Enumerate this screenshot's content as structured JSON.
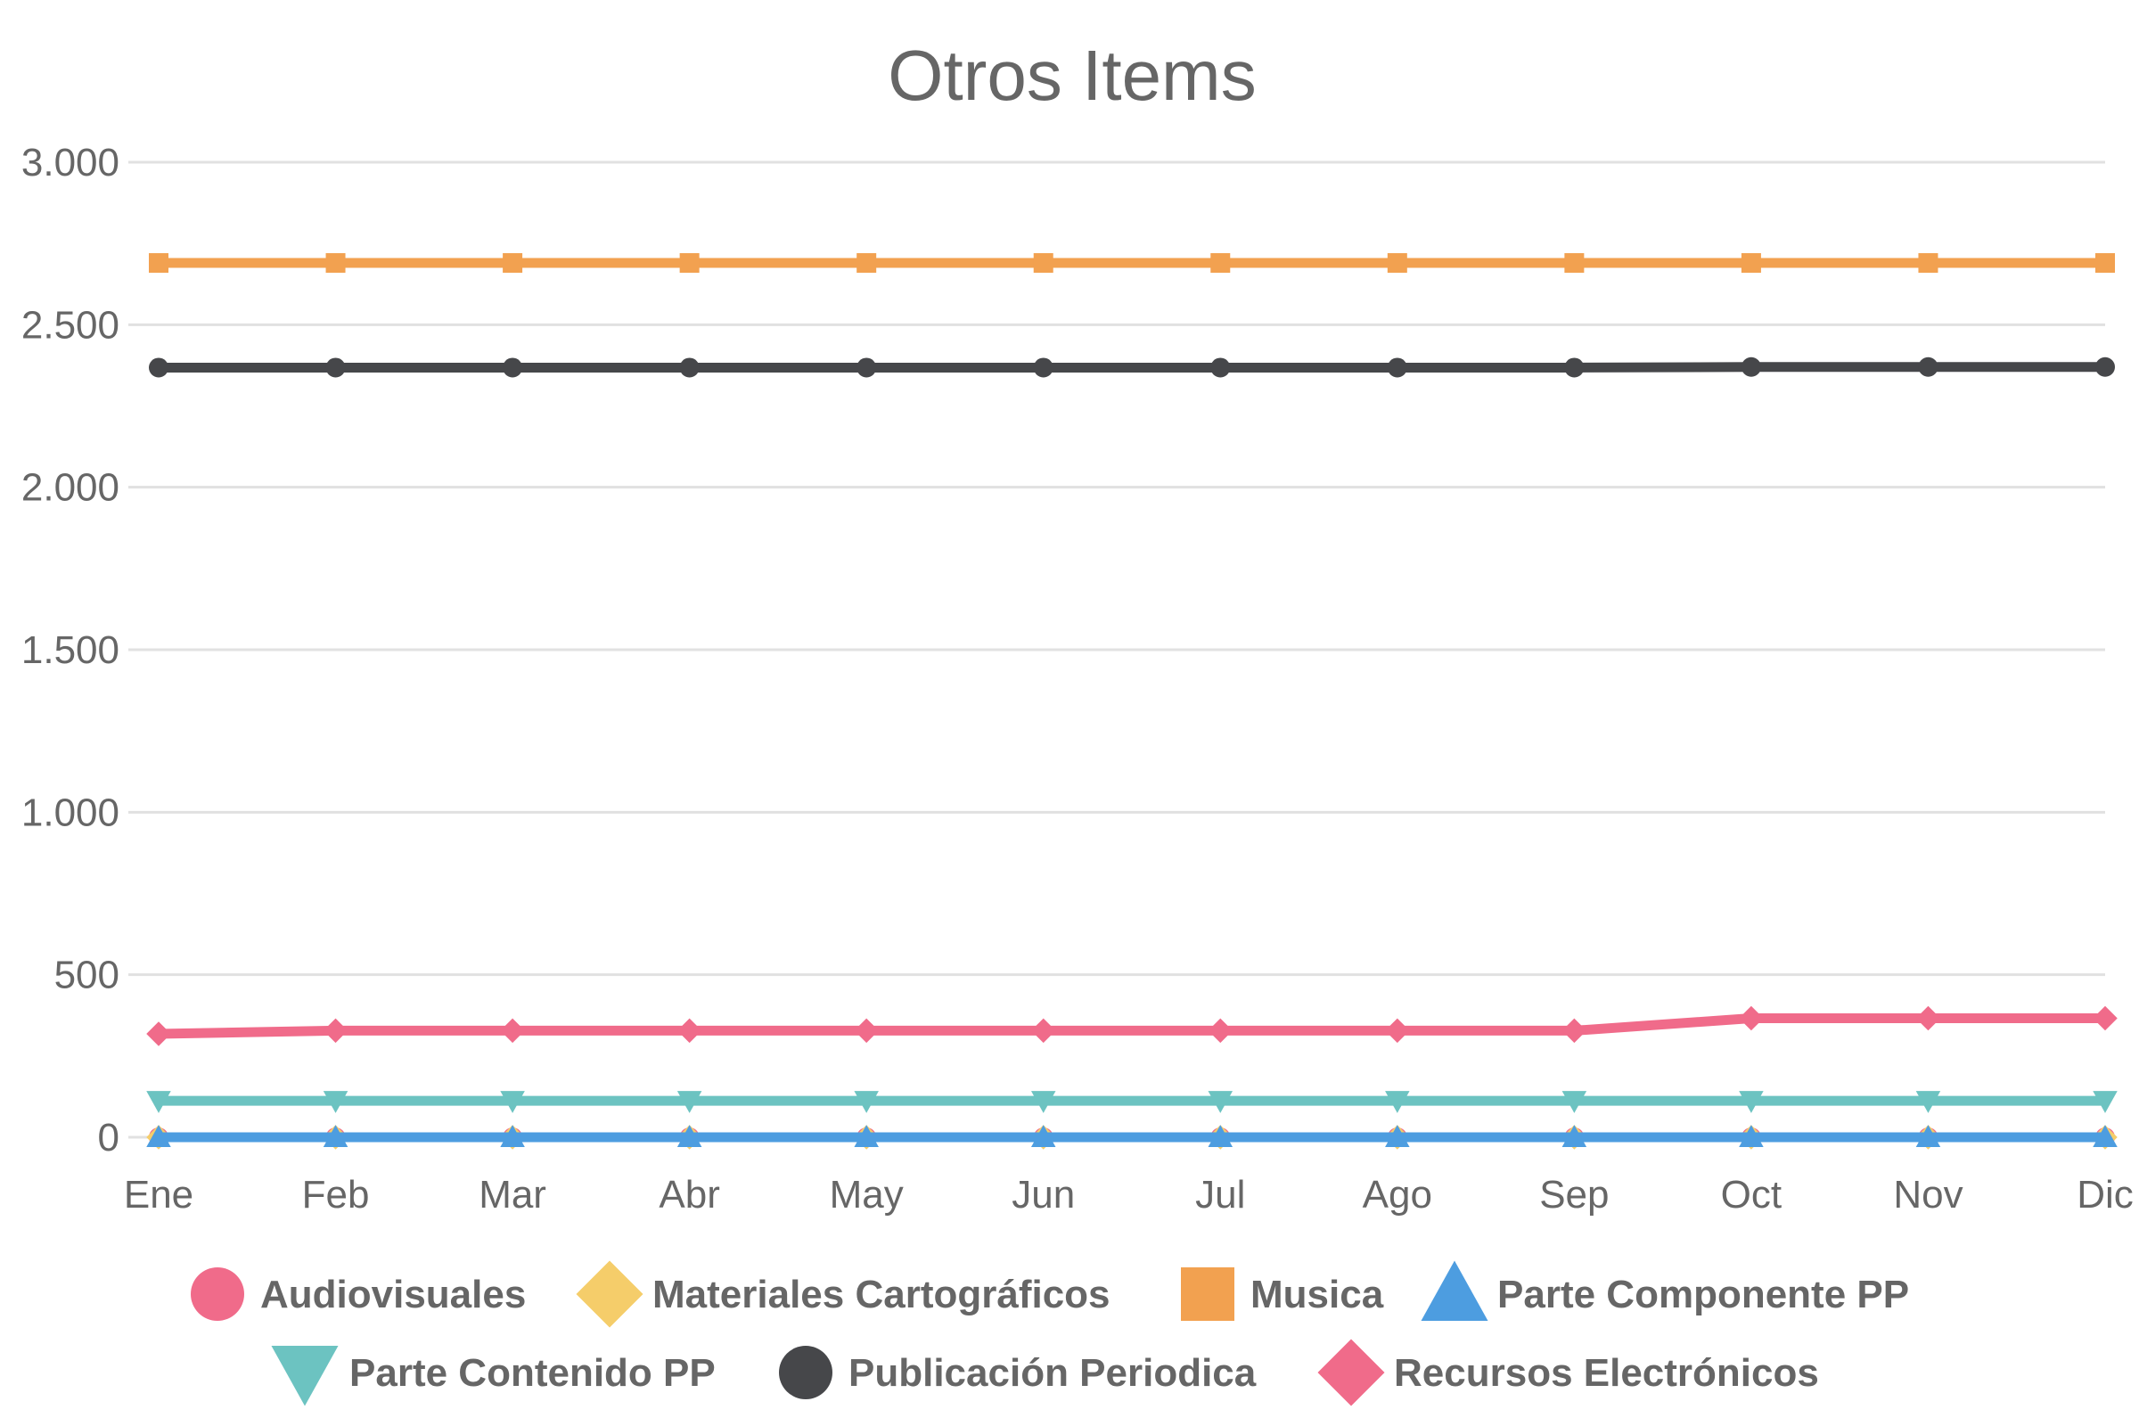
{
  "chart_data": {
    "type": "line",
    "title": "Otros Items",
    "xlabel": "",
    "ylabel": "",
    "categories": [
      "Ene",
      "Feb",
      "Mar",
      "Abr",
      "May",
      "Jun",
      "Jul",
      "Ago",
      "Sep",
      "Oct",
      "Nov",
      "Dic"
    ],
    "ylim": [
      0,
      3000
    ],
    "yticks": [
      0,
      500,
      1000,
      1500,
      2000,
      2500,
      3000
    ],
    "ytick_labels": [
      "0",
      "500",
      "1.000",
      "1.500",
      "2.000",
      "2.500",
      "3.000"
    ],
    "grid": true,
    "legend_position": "bottom",
    "series": [
      {
        "name": "Audiovisuales",
        "color": "#f06b8a",
        "marker": "circle",
        "values": [
          0,
          0,
          0,
          0,
          0,
          0,
          0,
          0,
          0,
          0,
          0,
          0
        ]
      },
      {
        "name": "Materiales Cartográficos",
        "color": "#f5cd6a",
        "marker": "diamond",
        "values": [
          0,
          0,
          0,
          0,
          0,
          0,
          0,
          0,
          0,
          0,
          0,
          0
        ]
      },
      {
        "name": "Musica",
        "color": "#f2a150",
        "marker": "square",
        "values": [
          2690,
          2690,
          2690,
          2690,
          2690,
          2690,
          2690,
          2690,
          2690,
          2690,
          2690,
          2690
        ]
      },
      {
        "name": "Parte Componente PP",
        "color": "#4d9de0",
        "marker": "triangle-up",
        "values": [
          0,
          0,
          0,
          0,
          0,
          0,
          0,
          0,
          0,
          0,
          0,
          0
        ]
      },
      {
        "name": "Parte Contenido PP",
        "color": "#6cc3c1",
        "marker": "triangle-down",
        "values": [
          112,
          112,
          112,
          112,
          112,
          112,
          112,
          112,
          112,
          112,
          112,
          112
        ]
      },
      {
        "name": "Publicación Periodica",
        "color": "#46474a",
        "marker": "circle",
        "values": [
          2368,
          2368,
          2368,
          2368,
          2368,
          2368,
          2368,
          2368,
          2368,
          2370,
          2370,
          2370
        ]
      },
      {
        "name": "Recursos Electrónicos",
        "color": "#f06b8a",
        "marker": "diamond",
        "values": [
          318,
          328,
          328,
          328,
          328,
          328,
          328,
          328,
          328,
          366,
          366,
          366
        ]
      }
    ]
  }
}
